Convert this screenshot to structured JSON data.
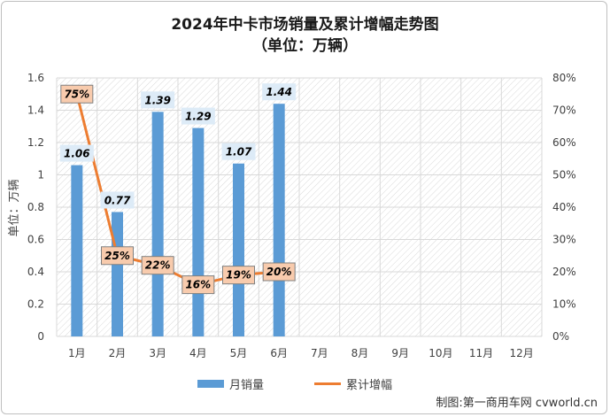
{
  "chart_data": {
    "type": "bar",
    "title": "2024年中卡市场销量及累计增幅走势图",
    "subtitle": "（单位：万辆）",
    "categories": [
      "1月",
      "2月",
      "3月",
      "4月",
      "5月",
      "6月",
      "7月",
      "8月",
      "9月",
      "10月",
      "11月",
      "12月"
    ],
    "series": [
      {
        "name": "月销量",
        "type": "bar",
        "axis": "left",
        "values": [
          1.06,
          0.77,
          1.39,
          1.29,
          1.07,
          1.44,
          null,
          null,
          null,
          null,
          null,
          null
        ],
        "labels": [
          "1.06",
          "0.77",
          "1.39",
          "1.29",
          "1.07",
          "1.44"
        ]
      },
      {
        "name": "累计增幅",
        "type": "line",
        "axis": "right",
        "values": [
          75,
          25,
          22,
          16,
          19,
          20,
          null,
          null,
          null,
          null,
          null,
          null
        ],
        "labels": [
          "75%",
          "25%",
          "22%",
          "16%",
          "19%",
          "20%"
        ]
      }
    ],
    "ylabel": "单位：万辆",
    "ylim": [
      0,
      1.6
    ],
    "yticks": [
      "0",
      "0.2",
      "0.4",
      "0.6",
      "0.8",
      "1",
      "1.2",
      "1.4",
      "1.6"
    ],
    "y2lim": [
      0,
      80
    ],
    "y2ticks": [
      "0%",
      "10%",
      "20%",
      "30%",
      "40%",
      "50%",
      "60%",
      "70%",
      "80%"
    ],
    "grid": true,
    "legend": "bottom",
    "colors": {
      "bar": "#5b9bd5",
      "line": "#ed7d31",
      "bar_label_bg": "#ddebf7",
      "line_label_bg": "#f8cbad",
      "line_label_border": "#808080"
    }
  },
  "credit": "制图:第一商用车网 cvworld.cn"
}
